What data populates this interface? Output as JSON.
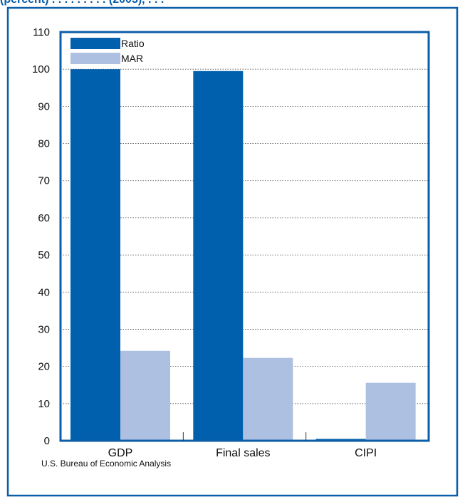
{
  "header": {
    "title_fragment": "(percent) . . . . . . . . . (2003), . . ."
  },
  "source": "U.S. Bureau of Economic Analysis",
  "colors": {
    "ratio": "#0060ad",
    "mar": "#adc0e2",
    "frame": "#0b5ea8",
    "grid": "#555555"
  },
  "chart_data": {
    "type": "bar",
    "categories": [
      "GDP",
      "Final sales",
      "CIPI"
    ],
    "series": [
      {
        "name": "Ratio",
        "values": [
          100,
          99.5,
          0.5
        ]
      },
      {
        "name": "MAR",
        "values": [
          24.2,
          22.3,
          15.6
        ]
      }
    ],
    "ylim": [
      0,
      110
    ],
    "yticks": [
      0,
      10,
      20,
      30,
      40,
      50,
      60,
      70,
      80,
      90,
      100,
      110
    ],
    "legend_position": "top-left",
    "grid": true
  }
}
